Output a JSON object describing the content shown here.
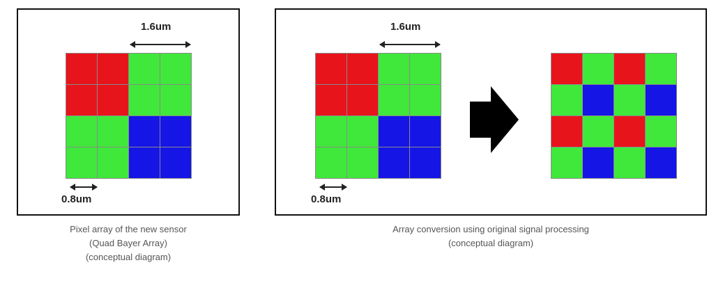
{
  "left": {
    "dim_top": "1.6um",
    "dim_bottom": "0.8um",
    "grid": [
      [
        "red",
        "red",
        "green",
        "green"
      ],
      [
        "red",
        "red",
        "green",
        "green"
      ],
      [
        "green",
        "green",
        "blue",
        "blue"
      ],
      [
        "green",
        "green",
        "blue",
        "blue"
      ]
    ],
    "caption": [
      "Pixel array of the new sensor",
      "(Quad Bayer Array)",
      "(conceptual diagram)"
    ]
  },
  "right": {
    "dim_top": "1.6um",
    "dim_bottom": "0.8um",
    "grid_input": [
      [
        "red",
        "red",
        "green",
        "green"
      ],
      [
        "red",
        "red",
        "green",
        "green"
      ],
      [
        "green",
        "green",
        "blue",
        "blue"
      ],
      [
        "green",
        "green",
        "blue",
        "blue"
      ]
    ],
    "grid_output": [
      [
        "red",
        "green",
        "red",
        "green"
      ],
      [
        "green",
        "blue",
        "green",
        "blue"
      ],
      [
        "red",
        "green",
        "red",
        "green"
      ],
      [
        "green",
        "blue",
        "green",
        "blue"
      ]
    ],
    "caption": [
      "Array conversion using original signal processing",
      "(conceptual diagram)"
    ]
  },
  "colors": {
    "red": "#e8141c",
    "green": "#3fe83a",
    "blue": "#1515e6",
    "grid_line": "#8a8a8a"
  },
  "icons": {
    "conversion_arrow": "right-arrow-icon"
  }
}
